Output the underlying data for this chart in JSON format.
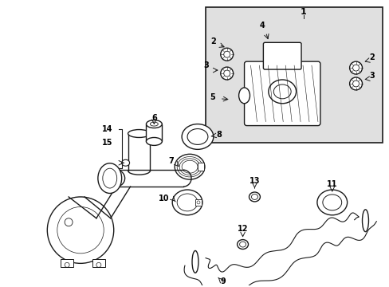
{
  "bg_color": "#ffffff",
  "inset_bg": "#e0e0e0",
  "line_color": "#1a1a1a",
  "label_color": "#000000",
  "figsize": [
    4.89,
    3.6
  ],
  "dpi": 100
}
